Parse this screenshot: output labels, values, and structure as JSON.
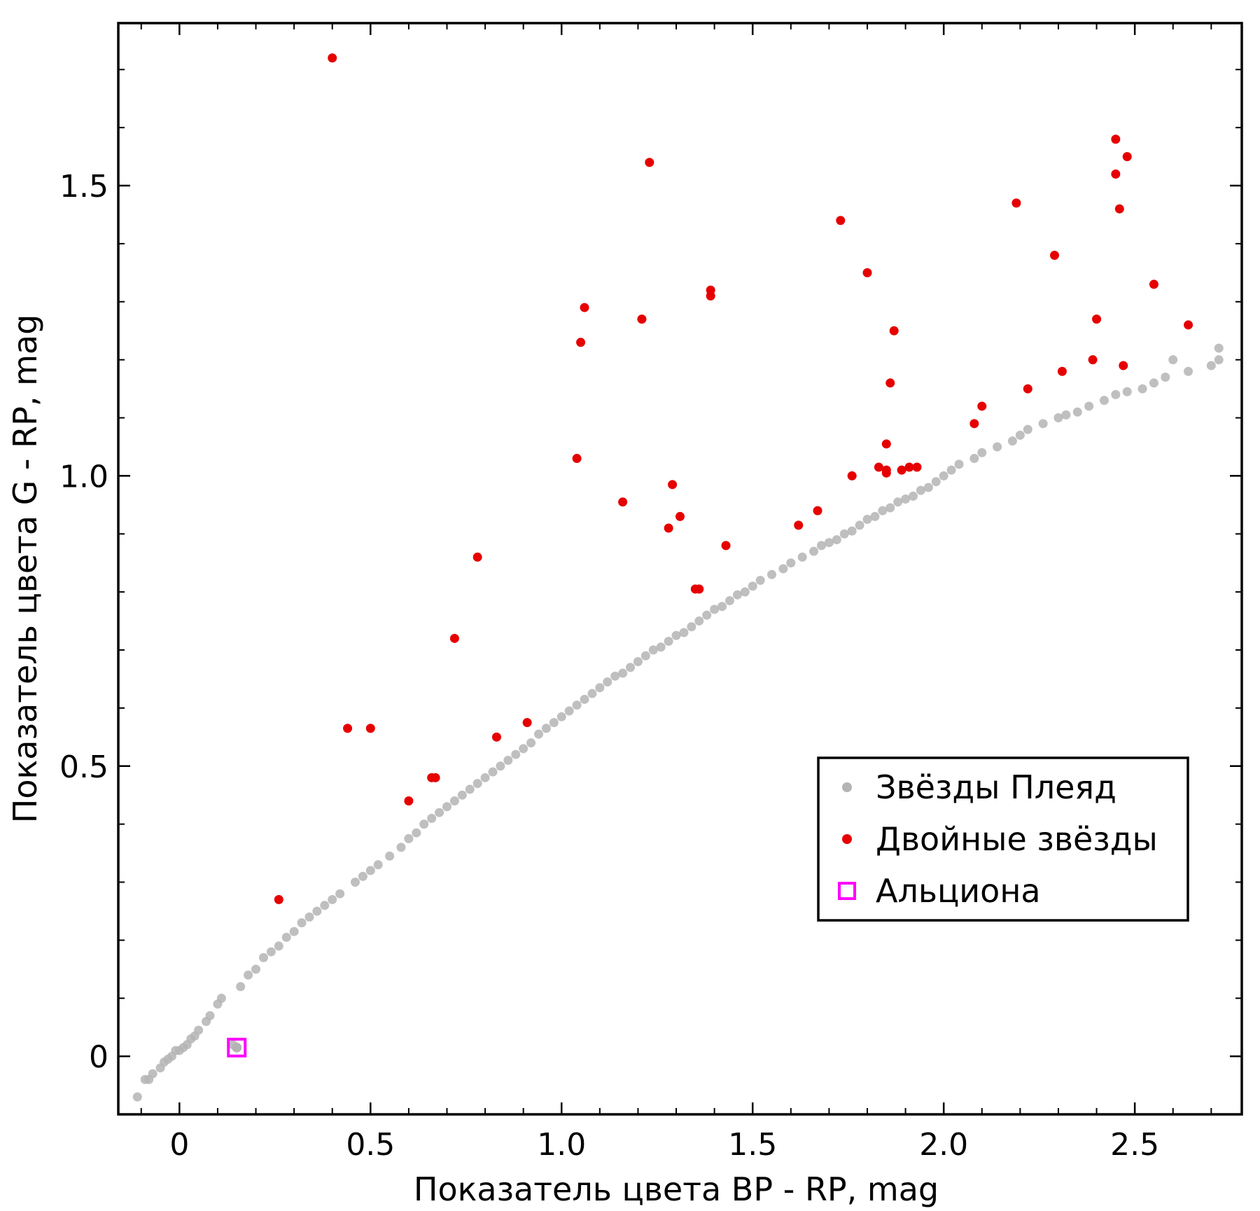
{
  "chart_data": {
    "type": "scatter",
    "xlabel": "Показатель цвета BP - RP, mag",
    "ylabel": "Показатель цвета G - RP, mag",
    "xlim": [
      -0.16,
      2.78
    ],
    "ylim": [
      -0.1,
      1.78
    ],
    "xticks": [
      0,
      0.5,
      1.0,
      1.5,
      2.0,
      2.5
    ],
    "xtick_labels": [
      "0",
      "0.5",
      "1.0",
      "1.5",
      "2.0",
      "2.5"
    ],
    "yticks": [
      0,
      0.5,
      1.0,
      1.5
    ],
    "ytick_labels": [
      "0",
      "0.5",
      "1.0",
      "1.5"
    ],
    "x_minor_step": 0.1,
    "y_minor_step": 0.1,
    "grid": false,
    "legend_position": "lower-right",
    "series": [
      {
        "name": "Звёзды Плеяд",
        "marker": "circle",
        "color": "#b4b4b4",
        "points": [
          [
            -0.11,
            -0.07
          ],
          [
            -0.09,
            -0.04
          ],
          [
            -0.08,
            -0.04
          ],
          [
            -0.07,
            -0.03
          ],
          [
            -0.05,
            -0.02
          ],
          [
            -0.04,
            -0.01
          ],
          [
            -0.03,
            -0.005
          ],
          [
            -0.02,
            0.0
          ],
          [
            -0.01,
            0.01
          ],
          [
            0.0,
            0.01
          ],
          [
            0.01,
            0.015
          ],
          [
            0.02,
            0.02
          ],
          [
            0.03,
            0.03
          ],
          [
            0.04,
            0.035
          ],
          [
            0.05,
            0.045
          ],
          [
            0.07,
            0.06
          ],
          [
            0.08,
            0.07
          ],
          [
            0.1,
            0.09
          ],
          [
            0.11,
            0.1
          ],
          [
            0.14,
            0.02
          ],
          [
            0.16,
            0.12
          ],
          [
            0.18,
            0.14
          ],
          [
            0.2,
            0.15
          ],
          [
            0.22,
            0.17
          ],
          [
            0.24,
            0.18
          ],
          [
            0.26,
            0.19
          ],
          [
            0.28,
            0.205
          ],
          [
            0.3,
            0.215
          ],
          [
            0.32,
            0.23
          ],
          [
            0.34,
            0.24
          ],
          [
            0.36,
            0.25
          ],
          [
            0.38,
            0.26
          ],
          [
            0.4,
            0.27
          ],
          [
            0.42,
            0.28
          ],
          [
            0.46,
            0.3
          ],
          [
            0.48,
            0.31
          ],
          [
            0.5,
            0.32
          ],
          [
            0.52,
            0.33
          ],
          [
            0.55,
            0.345
          ],
          [
            0.58,
            0.36
          ],
          [
            0.6,
            0.375
          ],
          [
            0.62,
            0.385
          ],
          [
            0.64,
            0.4
          ],
          [
            0.66,
            0.41
          ],
          [
            0.68,
            0.42
          ],
          [
            0.7,
            0.43
          ],
          [
            0.72,
            0.44
          ],
          [
            0.74,
            0.45
          ],
          [
            0.76,
            0.46
          ],
          [
            0.78,
            0.47
          ],
          [
            0.8,
            0.48
          ],
          [
            0.82,
            0.49
          ],
          [
            0.84,
            0.5
          ],
          [
            0.86,
            0.51
          ],
          [
            0.88,
            0.52
          ],
          [
            0.9,
            0.53
          ],
          [
            0.92,
            0.54
          ],
          [
            0.94,
            0.555
          ],
          [
            0.96,
            0.565
          ],
          [
            0.98,
            0.575
          ],
          [
            1.0,
            0.585
          ],
          [
            1.02,
            0.595
          ],
          [
            1.04,
            0.605
          ],
          [
            1.06,
            0.615
          ],
          [
            1.08,
            0.625
          ],
          [
            1.1,
            0.635
          ],
          [
            1.12,
            0.645
          ],
          [
            1.14,
            0.655
          ],
          [
            1.16,
            0.66
          ],
          [
            1.18,
            0.67
          ],
          [
            1.2,
            0.68
          ],
          [
            1.22,
            0.69
          ],
          [
            1.24,
            0.7
          ],
          [
            1.26,
            0.705
          ],
          [
            1.28,
            0.715
          ],
          [
            1.3,
            0.725
          ],
          [
            1.32,
            0.73
          ],
          [
            1.34,
            0.74
          ],
          [
            1.36,
            0.75
          ],
          [
            1.38,
            0.76
          ],
          [
            1.4,
            0.77
          ],
          [
            1.42,
            0.775
          ],
          [
            1.44,
            0.785
          ],
          [
            1.46,
            0.795
          ],
          [
            1.48,
            0.8
          ],
          [
            1.5,
            0.81
          ],
          [
            1.52,
            0.82
          ],
          [
            1.55,
            0.83
          ],
          [
            1.58,
            0.84
          ],
          [
            1.6,
            0.85
          ],
          [
            1.63,
            0.86
          ],
          [
            1.66,
            0.87
          ],
          [
            1.68,
            0.88
          ],
          [
            1.7,
            0.885
          ],
          [
            1.72,
            0.89
          ],
          [
            1.74,
            0.9
          ],
          [
            1.76,
            0.905
          ],
          [
            1.78,
            0.915
          ],
          [
            1.8,
            0.925
          ],
          [
            1.82,
            0.93
          ],
          [
            1.84,
            0.94
          ],
          [
            1.86,
            0.945
          ],
          [
            1.88,
            0.955
          ],
          [
            1.9,
            0.96
          ],
          [
            1.92,
            0.965
          ],
          [
            1.94,
            0.975
          ],
          [
            1.96,
            0.98
          ],
          [
            1.98,
            0.99
          ],
          [
            2.0,
            1.0
          ],
          [
            2.02,
            1.01
          ],
          [
            2.04,
            1.02
          ],
          [
            2.08,
            1.03
          ],
          [
            2.1,
            1.04
          ],
          [
            2.14,
            1.05
          ],
          [
            2.18,
            1.06
          ],
          [
            2.2,
            1.07
          ],
          [
            2.22,
            1.08
          ],
          [
            2.26,
            1.09
          ],
          [
            2.3,
            1.1
          ],
          [
            2.32,
            1.105
          ],
          [
            2.35,
            1.11
          ],
          [
            2.38,
            1.12
          ],
          [
            2.42,
            1.13
          ],
          [
            2.45,
            1.14
          ],
          [
            2.48,
            1.145
          ],
          [
            2.52,
            1.15
          ],
          [
            2.55,
            1.16
          ],
          [
            2.58,
            1.17
          ],
          [
            2.6,
            1.2
          ],
          [
            2.64,
            1.18
          ],
          [
            2.7,
            1.19
          ],
          [
            2.72,
            1.2
          ],
          [
            2.72,
            1.22
          ]
        ]
      },
      {
        "name": "Двойные звёзды",
        "marker": "circle",
        "color": "#e60000",
        "points": [
          [
            0.26,
            0.27
          ],
          [
            0.4,
            1.72
          ],
          [
            0.44,
            0.565
          ],
          [
            0.5,
            0.565
          ],
          [
            0.6,
            0.44
          ],
          [
            0.66,
            0.48
          ],
          [
            0.67,
            0.48
          ],
          [
            0.72,
            0.72
          ],
          [
            0.78,
            0.86
          ],
          [
            0.83,
            0.55
          ],
          [
            0.91,
            0.575
          ],
          [
            1.04,
            1.03
          ],
          [
            1.05,
            1.23
          ],
          [
            1.06,
            1.29
          ],
          [
            1.16,
            0.955
          ],
          [
            1.21,
            1.27
          ],
          [
            1.23,
            1.54
          ],
          [
            1.28,
            0.91
          ],
          [
            1.29,
            0.985
          ],
          [
            1.31,
            0.93
          ],
          [
            1.35,
            0.805
          ],
          [
            1.36,
            0.805
          ],
          [
            1.39,
            1.31
          ],
          [
            1.39,
            1.32
          ],
          [
            1.43,
            0.88
          ],
          [
            1.62,
            0.915
          ],
          [
            1.67,
            0.94
          ],
          [
            1.73,
            1.44
          ],
          [
            1.76,
            1.0
          ],
          [
            1.8,
            1.35
          ],
          [
            1.83,
            1.015
          ],
          [
            1.85,
            1.005
          ],
          [
            1.85,
            1.01
          ],
          [
            1.85,
            1.055
          ],
          [
            1.86,
            1.16
          ],
          [
            1.87,
            1.25
          ],
          [
            1.89,
            1.01
          ],
          [
            1.91,
            1.015
          ],
          [
            1.93,
            1.015
          ],
          [
            2.08,
            1.09
          ],
          [
            2.1,
            1.12
          ],
          [
            2.19,
            1.47
          ],
          [
            2.22,
            1.15
          ],
          [
            2.29,
            1.38
          ],
          [
            2.31,
            1.18
          ],
          [
            2.39,
            1.2
          ],
          [
            2.4,
            1.27
          ],
          [
            2.45,
            1.52
          ],
          [
            2.45,
            1.58
          ],
          [
            2.46,
            1.46
          ],
          [
            2.47,
            1.19
          ],
          [
            2.48,
            1.55
          ],
          [
            2.55,
            1.33
          ],
          [
            2.64,
            1.26
          ]
        ]
      },
      {
        "name": "Альциона",
        "marker": "square",
        "color": "#ff00ff",
        "points": [
          [
            0.15,
            0.015
          ]
        ]
      }
    ]
  }
}
